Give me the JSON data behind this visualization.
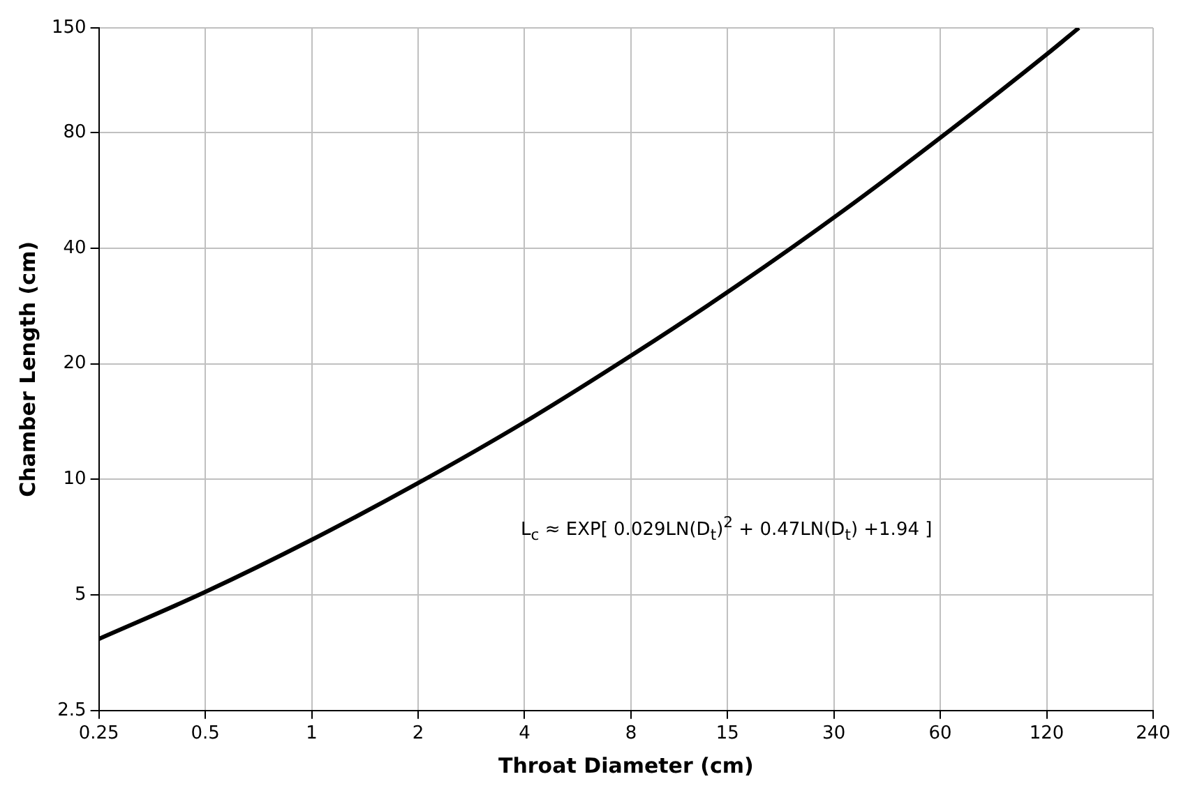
{
  "chart_data": {
    "type": "line",
    "xlabel": "Throat Diameter (cm)",
    "ylabel": "Chamber Length (cm)",
    "log": "xy",
    "grid": true,
    "legend": false,
    "marker": "none",
    "line_style": "solid",
    "x": [
      0.25,
      0.5,
      1,
      2,
      4,
      8,
      16,
      32,
      64,
      120,
      148
    ],
    "series": [
      {
        "color": "#000000",
        "values": [
          3.84,
          5.09,
          6.96,
          9.78,
          14.1,
          21,
          32,
          50.2,
          81.2,
          128,
          150
        ]
      }
    ],
    "xlim": [
      0.25,
      240
    ],
    "xticks": [
      0.25,
      0.5,
      1,
      2,
      4,
      8,
      15,
      30,
      60,
      120,
      240
    ],
    "ylim": [
      2.5,
      150
    ],
    "yticks": [
      2.5,
      5,
      10,
      20,
      40,
      80,
      150
    ],
    "annotations": [
      "L$_{c}$ ≈ EXP[ 0.029LN(D$_{t}$)$^{2}$ + 0.47LN(D$_{t}$) +1.94 ]"
    ]
  }
}
